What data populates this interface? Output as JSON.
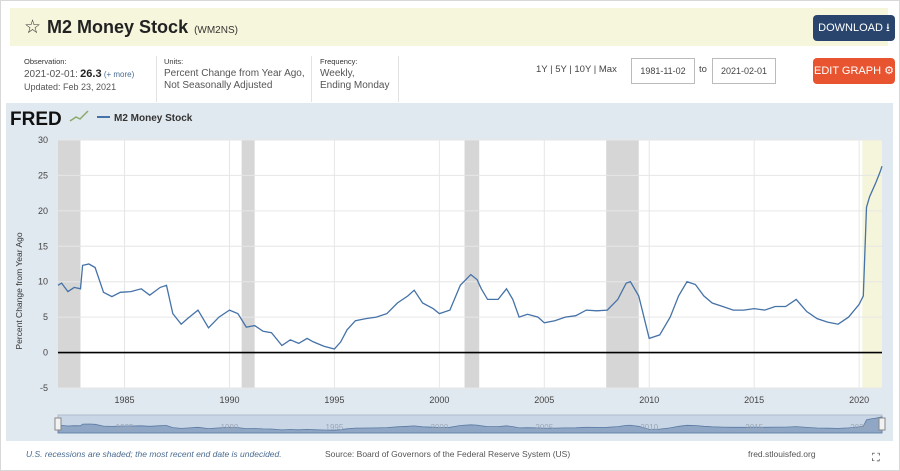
{
  "header": {
    "title": "M2 Money Stock",
    "series_id": "(WM2NS)",
    "download_label": "DOWNLOAD",
    "edit_label": "EDIT GRAPH"
  },
  "observation": {
    "label": "Observation:",
    "date": "2021-02-01:",
    "value": "26.3",
    "more": "(+ more)",
    "updated": "Updated: Feb 23, 2021"
  },
  "units": {
    "label": "Units:",
    "line1": "Percent Change from Year Ago,",
    "line2": "Not Seasonally Adjusted"
  },
  "frequency": {
    "label": "Frequency:",
    "line1": "Weekly,",
    "line2": "Ending Monday"
  },
  "range_controls": {
    "options": "1Y | 5Y | 10Y | Max",
    "start": "1981-11-02",
    "to": "to",
    "end": "2021-02-01"
  },
  "chart_data": {
    "type": "line",
    "brand": "FRED",
    "series": [
      {
        "name": "M2 Money Stock",
        "color": "#4572a7",
        "x": [
          1981.83,
          1982.0,
          1982.3,
          1982.6,
          1982.9,
          1983.0,
          1983.3,
          1983.6,
          1984.0,
          1984.4,
          1984.8,
          1985.3,
          1985.8,
          1986.2,
          1986.7,
          1987.0,
          1987.3,
          1987.7,
          1988.0,
          1988.5,
          1989.0,
          1989.5,
          1990.0,
          1990.4,
          1990.8,
          1991.2,
          1991.6,
          1992.0,
          1992.5,
          1992.9,
          1993.3,
          1993.7,
          1994.0,
          1994.5,
          1995.0,
          1995.3,
          1995.6,
          1996.0,
          1996.5,
          1997.0,
          1997.5,
          1998.0,
          1998.5,
          1998.8,
          1999.2,
          1999.7,
          2000.0,
          2000.5,
          2001.0,
          2001.5,
          2001.8,
          2002.0,
          2002.3,
          2002.8,
          2003.2,
          2003.5,
          2003.8,
          2004.2,
          2004.7,
          2005.0,
          2005.5,
          2006.0,
          2006.5,
          2007.0,
          2007.5,
          2008.0,
          2008.5,
          2008.9,
          2009.1,
          2009.5,
          2010.0,
          2010.5,
          2011.0,
          2011.4,
          2011.8,
          2012.2,
          2012.6,
          2013.0,
          2013.5,
          2014.0,
          2014.5,
          2015.0,
          2015.5,
          2016.0,
          2016.5,
          2017.0,
          2017.5,
          2018.0,
          2018.5,
          2019.0,
          2019.5,
          2020.0,
          2020.2,
          2020.35,
          2020.5,
          2020.8,
          2021.0,
          2021.09
        ],
        "y": [
          9.5,
          9.8,
          8.6,
          9.2,
          9.0,
          12.3,
          12.5,
          12.0,
          8.5,
          7.9,
          8.5,
          8.6,
          9.0,
          8.1,
          9.2,
          9.5,
          5.5,
          4.0,
          4.8,
          6.0,
          3.5,
          5.0,
          6.0,
          5.5,
          3.6,
          3.8,
          3.0,
          2.8,
          1.0,
          1.8,
          1.3,
          2.0,
          1.5,
          0.9,
          0.5,
          1.5,
          3.2,
          4.5,
          4.8,
          5.0,
          5.5,
          7.0,
          8.0,
          8.8,
          7.0,
          6.2,
          5.5,
          6.0,
          9.5,
          11.0,
          10.3,
          9.0,
          7.5,
          7.5,
          9.0,
          7.5,
          5.0,
          5.4,
          5.0,
          4.2,
          4.5,
          5.0,
          5.2,
          6.0,
          5.9,
          6.0,
          7.5,
          9.8,
          10.0,
          8.0,
          2.0,
          2.5,
          5.0,
          8.0,
          10.0,
          9.6,
          8.0,
          7.0,
          6.5,
          6.0,
          6.0,
          6.2,
          6.0,
          6.5,
          6.5,
          7.5,
          5.8,
          4.8,
          4.3,
          4.0,
          5.0,
          6.8,
          8.0,
          20.5,
          22.0,
          24.0,
          25.5,
          26.3
        ]
      }
    ],
    "xlim": [
      1981.83,
      2021.09
    ],
    "ylim": [
      -5,
      30
    ],
    "x_ticks": [
      1985,
      1990,
      1995,
      2000,
      2005,
      2010,
      2015,
      2020
    ],
    "y_ticks": [
      -5,
      0,
      5,
      10,
      15,
      20,
      25,
      30
    ],
    "ylabel": "Percent Change from Year Ago",
    "recessions": [
      [
        1981.83,
        1982.9
      ],
      [
        1990.58,
        1991.2
      ],
      [
        2001.2,
        2001.9
      ],
      [
        2007.95,
        2009.5
      ]
    ],
    "undecided_start": 2020.15,
    "navigator_ticks": [
      1985,
      1990,
      1995,
      2000,
      2005,
      2010,
      2015,
      2020
    ],
    "grid": true
  },
  "footer": {
    "note": "U.S. recessions are shaded; the most recent end date is undecided.",
    "source": "Source: Board of Governors of the Federal Reserve System (US)",
    "url": "fred.stlouisfed.org"
  },
  "colors": {
    "header_bg": "#f6f6dc",
    "download": "#29456d",
    "edit": "#e8542f",
    "line": "#4572a7",
    "recession": "#d6d6d6",
    "undecided": "#f5f5dc"
  }
}
